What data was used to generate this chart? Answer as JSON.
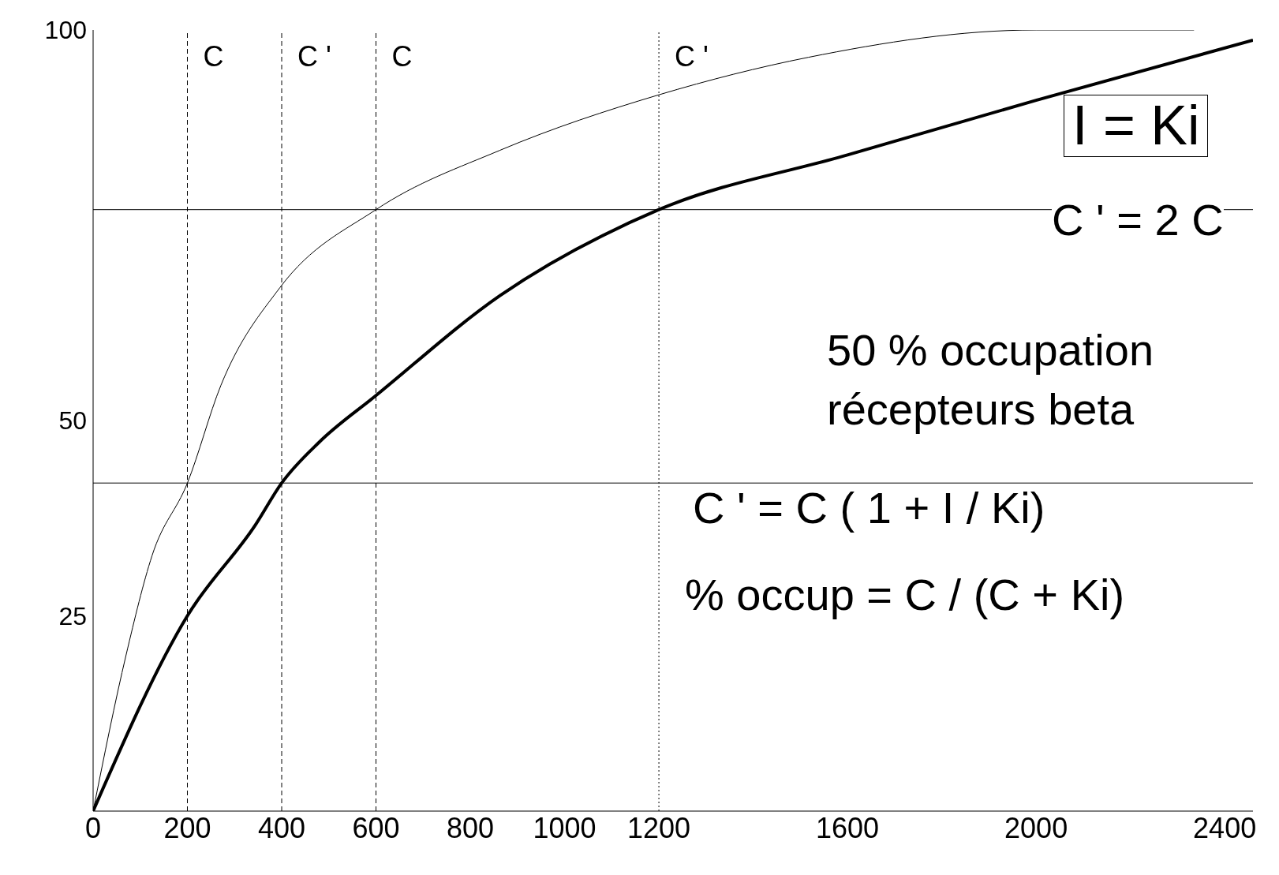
{
  "chart_data": {
    "type": "line",
    "series": [
      {
        "color": "#000000",
        "x": [
          0,
          70,
          125,
          200,
          271,
          396,
          600,
          863,
          1200,
          1517,
          2000,
          2335
        ],
        "values": [
          0,
          20,
          32.7,
          42,
          54.5,
          67,
          77,
          84.6,
          91.7,
          96.5,
          100,
          100
        ]
      },
      {
        "color": "#000000",
        "x": [
          0,
          200,
          345,
          400,
          479,
          600,
          863,
          1200,
          1600,
          2000,
          2460
        ],
        "values": [
          0,
          25,
          36.7,
          42,
          47.2,
          53.2,
          66,
          77,
          84,
          91,
          98.7
        ]
      }
    ],
    "xlim": [
      0,
      2460
    ],
    "xticks": [
      0,
      200,
      400,
      600,
      800,
      1000,
      1200,
      1600,
      2000,
      2400
    ],
    "ylim": [
      0,
      100
    ],
    "yticks": [
      25,
      50,
      100
    ],
    "marker": "none",
    "ref_lines": [
      {
        "axis": "x",
        "value": 200,
        "label": "C",
        "line_style": "dashed",
        "color": "#000000"
      },
      {
        "axis": "x",
        "value": 400,
        "label": "C '",
        "line_style": "dashed",
        "color": "#000000"
      },
      {
        "axis": "x",
        "value": 600,
        "label": "C",
        "line_style": "dashed",
        "color": "#000000"
      },
      {
        "axis": "x",
        "value": 1200,
        "label": "C '",
        "line_style": "dotted",
        "color": "#000000"
      },
      {
        "axis": "y",
        "value": 42,
        "line_style": "solid",
        "color": "#000000"
      },
      {
        "axis": "y",
        "value": 77,
        "line_style": "solid",
        "color": "#000000"
      }
    ],
    "annotations": [
      "I = Ki",
      "C ' = 2 C",
      "50 % occupation",
      "récepteurs beta",
      "C ' = C ( 1 + I / Ki)",
      "% occup = C / (C + Ki)"
    ]
  }
}
